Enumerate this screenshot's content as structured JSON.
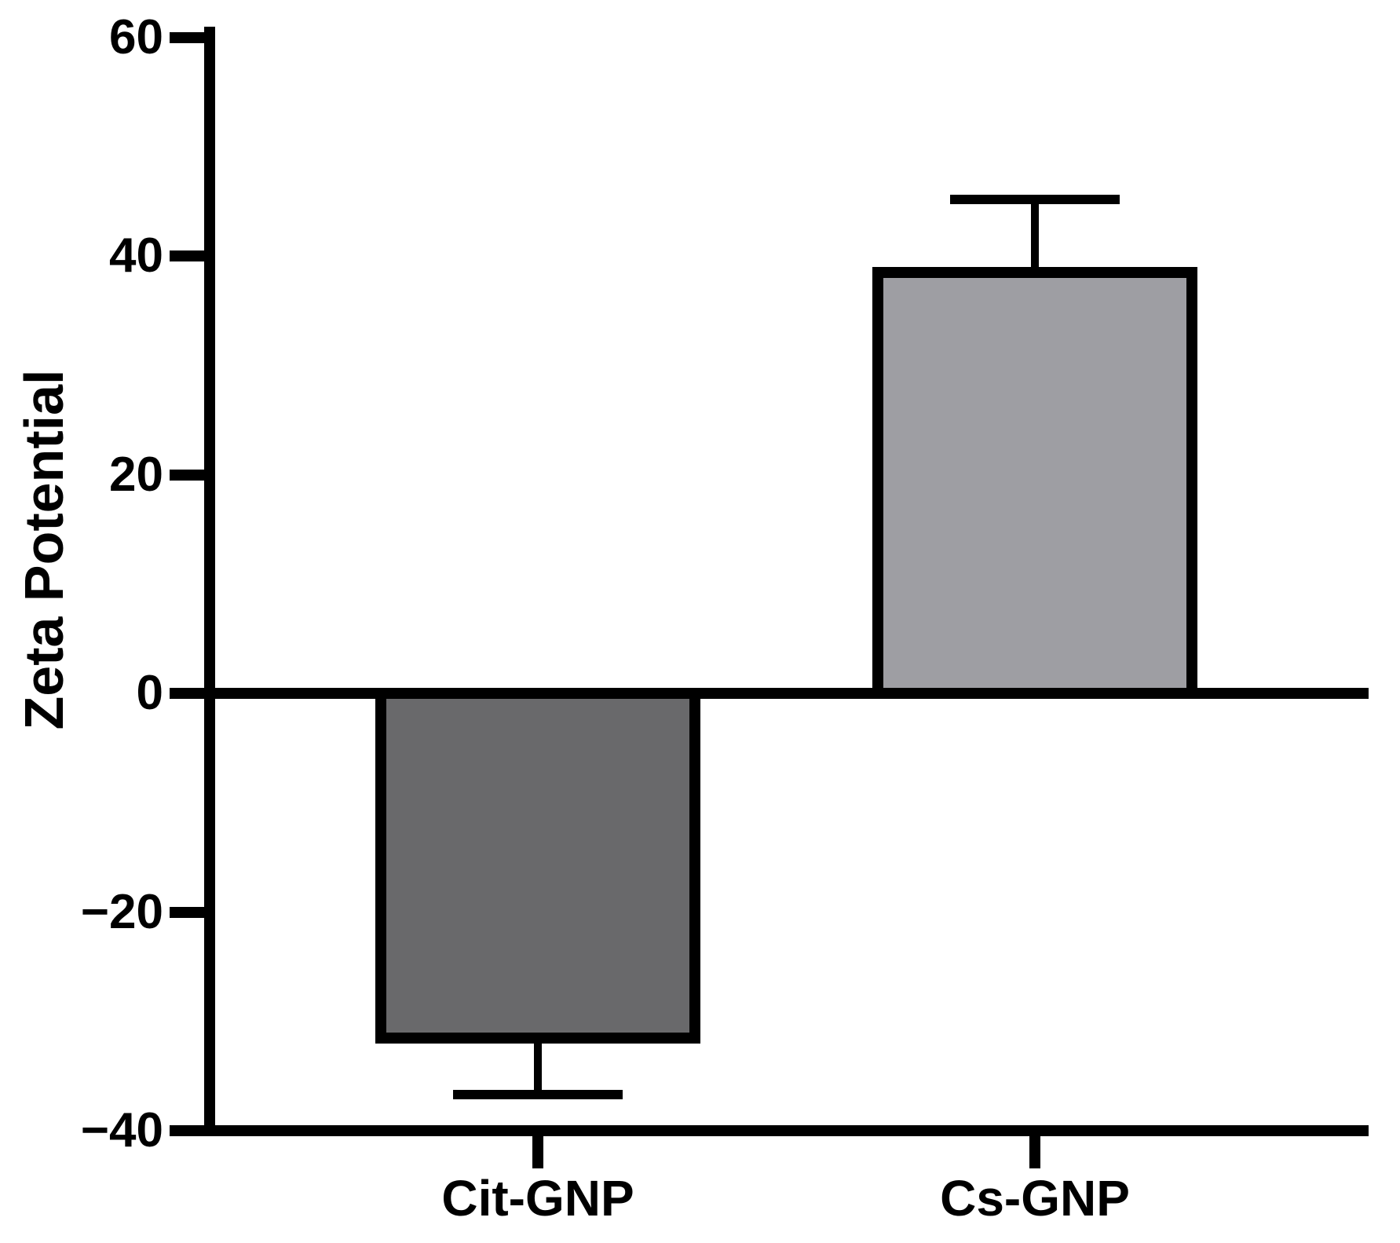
{
  "chart_data": {
    "type": "bar",
    "title": "",
    "ylabel": "Zeta Potential",
    "xlabel": "",
    "categories": [
      "Cit-GNP",
      "Cs-GNP"
    ],
    "values": [
      -32,
      39
    ],
    "errors": [
      4.7,
      6.2
    ],
    "error_direction": "outward-only",
    "ylim": [
      -40,
      60
    ],
    "yticks": [
      60,
      40,
      20,
      0,
      -20,
      -40
    ],
    "ytick_labels": [
      "60",
      "40",
      "20",
      "0",
      "−20",
      "−40"
    ],
    "bar_fill_colors": [
      "#69696b",
      "#9e9ea3"
    ],
    "bar_border_color": "#000000",
    "error_bar_color": "#000000",
    "axis_color": "#000000",
    "text_color": "#000000",
    "background_color": "#ffffff",
    "grid": false,
    "legend": null
  }
}
